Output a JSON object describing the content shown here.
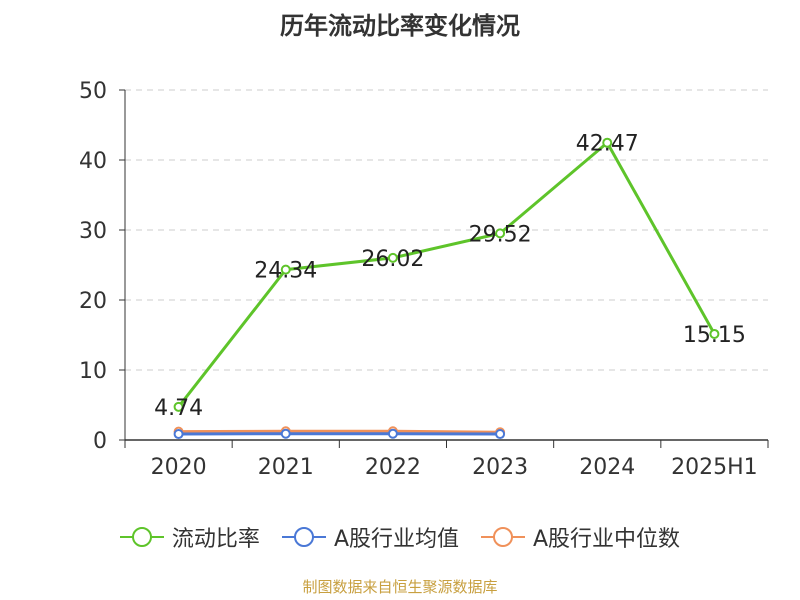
{
  "chart_data": {
    "type": "line",
    "title": "历年流动比率变化情况",
    "categories": [
      "2020",
      "2021",
      "2022",
      "2023",
      "2024",
      "2025H1"
    ],
    "ylim": [
      0,
      50
    ],
    "yticks": [
      0,
      10,
      20,
      30,
      40,
      50
    ],
    "grid": true,
    "legend_position": "bottom",
    "series": [
      {
        "name": "流动比率",
        "color": "#5ec42a",
        "values": [
          4.74,
          24.34,
          26.02,
          29.52,
          42.47,
          15.15
        ],
        "show_labels": true
      },
      {
        "name": "A股行业均值",
        "color": "#4a78d6",
        "values": [
          0.85,
          0.9,
          0.9,
          0.85,
          null,
          null
        ],
        "show_labels": false
      },
      {
        "name": "A股行业中位数",
        "color": "#f0915a",
        "values": [
          1.2,
          1.25,
          1.25,
          1.1,
          null,
          null
        ],
        "show_labels": false
      }
    ]
  },
  "footer": {
    "source": "制图数据来自恒生聚源数据库"
  }
}
